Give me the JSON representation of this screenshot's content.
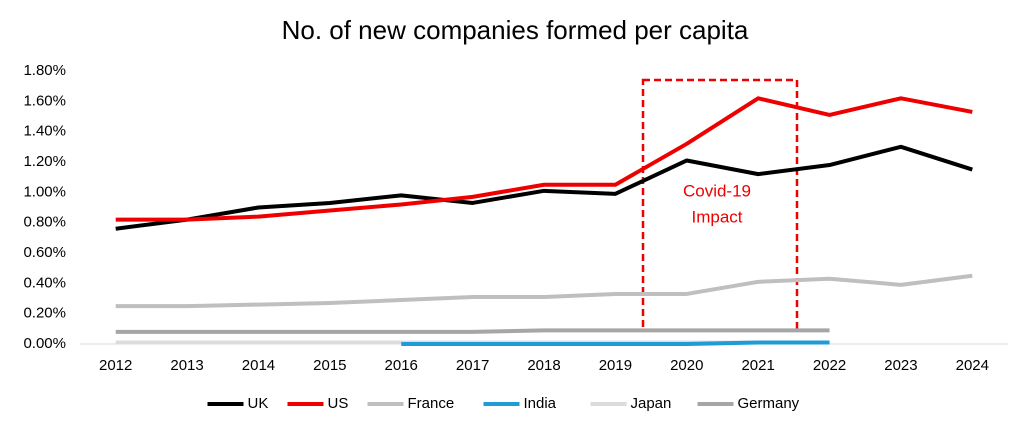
{
  "chart_data": {
    "type": "line",
    "title": "No. of new companies formed per capita",
    "categories": [
      "2012",
      "2013",
      "2014",
      "2015",
      "2016",
      "2017",
      "2018",
      "2019",
      "2020",
      "2021",
      "2022",
      "2023",
      "2024"
    ],
    "series": [
      {
        "name": "UK",
        "color": "#000000",
        "values": [
          0.76,
          0.82,
          0.9,
          0.93,
          0.98,
          0.93,
          1.01,
          0.99,
          1.21,
          1.12,
          1.18,
          1.3,
          1.15
        ]
      },
      {
        "name": "US",
        "color": "#ee0000",
        "values": [
          0.82,
          0.82,
          0.84,
          0.88,
          0.92,
          0.97,
          1.05,
          1.05,
          1.32,
          1.62,
          1.51,
          1.62,
          1.53
        ]
      },
      {
        "name": "France",
        "color": "#bfbfbf",
        "values": [
          0.25,
          0.25,
          0.26,
          0.27,
          0.29,
          0.31,
          0.31,
          0.33,
          0.33,
          0.41,
          0.43,
          0.39,
          0.45
        ]
      },
      {
        "name": "India",
        "color": "#1f9bd7",
        "values": [
          null,
          null,
          null,
          null,
          0.0,
          0.0,
          0.0,
          0.0,
          0.0,
          0.01,
          0.01,
          null,
          null
        ]
      },
      {
        "name": "Japan",
        "color": "#dcdcdc",
        "values": [
          0.01,
          0.01,
          0.01,
          0.01,
          0.01,
          0.01,
          0.01,
          0.01,
          0.01,
          0.01,
          0.01,
          null,
          null
        ]
      },
      {
        "name": "Germany",
        "color": "#a6a6a6",
        "values": [
          0.08,
          0.08,
          0.08,
          0.08,
          0.08,
          0.08,
          0.09,
          0.09,
          0.09,
          0.09,
          0.09,
          null,
          null
        ]
      }
    ],
    "ylim": [
      0,
      1.8
    ],
    "yticks": [
      {
        "value": 0,
        "label": "0.00%"
      },
      {
        "value": 0.2,
        "label": "0.20%"
      },
      {
        "value": 0.4,
        "label": "0.40%"
      },
      {
        "value": 0.6,
        "label": "0.60%"
      },
      {
        "value": 0.8,
        "label": "0.80%"
      },
      {
        "value": 1.0,
        "label": "1.00%"
      },
      {
        "value": 1.2,
        "label": "1.20%"
      },
      {
        "value": 1.4,
        "label": "1.40%"
      },
      {
        "value": 1.6,
        "label": "1.60%"
      },
      {
        "value": 1.8,
        "label": "1.80%"
      }
    ],
    "annotation": [
      "Covid-19",
      "Impact"
    ],
    "grid": false,
    "legend": "bottom"
  }
}
